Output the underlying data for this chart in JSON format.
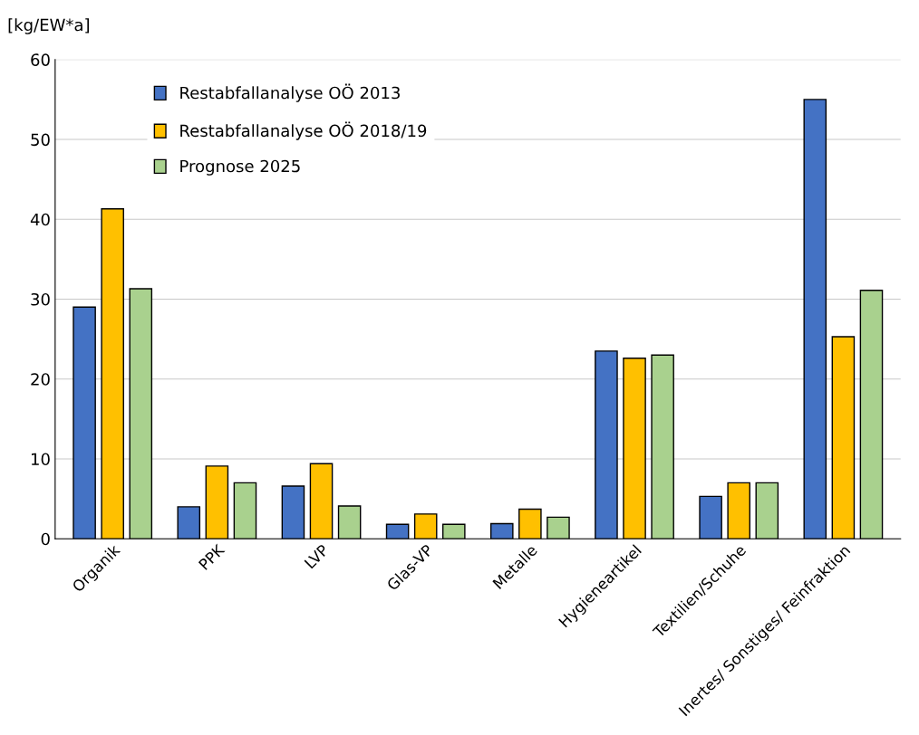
{
  "chart_data": {
    "type": "bar",
    "ylabel": "[kg/EW*a]",
    "categories": [
      "Organik",
      "PPK",
      "LVP",
      "Glas-VP",
      "Metalle",
      "Hygieneartikel",
      "Textilien/Schuhe",
      "Inertes/ Sonstiges/ Feinfraktion"
    ],
    "series": [
      {
        "name": "Restabfallanalyse OÖ 2013",
        "color": "#4472c4",
        "values": [
          29.0,
          4.0,
          6.6,
          1.8,
          1.9,
          23.5,
          5.3,
          55.0
        ]
      },
      {
        "name": "Restabfallanalyse OÖ 2018/19",
        "color": "#ffc000",
        "values": [
          41.3,
          9.1,
          9.4,
          3.1,
          3.7,
          22.6,
          7.0,
          25.3
        ]
      },
      {
        "name": "Prognose 2025",
        "color": "#a9d18e",
        "values": [
          31.3,
          7.0,
          4.1,
          1.8,
          2.7,
          23.0,
          7.0,
          31.1
        ]
      }
    ],
    "ylim": [
      0,
      60
    ],
    "yticks": [
      0,
      10,
      20,
      30,
      40,
      50,
      60
    ],
    "grid": "y",
    "legend": "top left"
  }
}
